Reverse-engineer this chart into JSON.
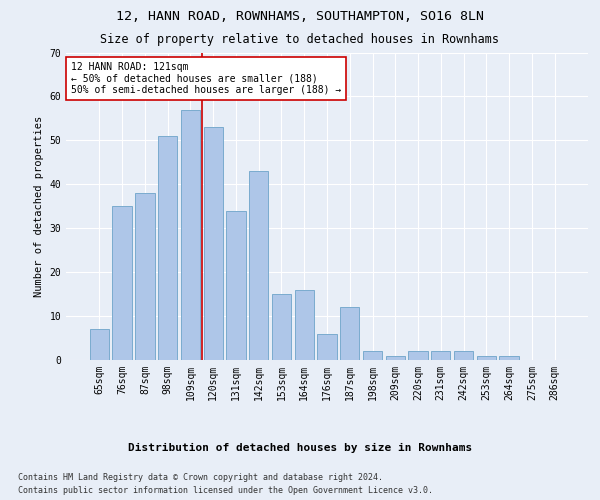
{
  "title1": "12, HANN ROAD, ROWNHAMS, SOUTHAMPTON, SO16 8LN",
  "title2": "Size of property relative to detached houses in Rownhams",
  "xlabel": "Distribution of detached houses by size in Rownhams",
  "ylabel": "Number of detached properties",
  "categories": [
    "65sqm",
    "76sqm",
    "87sqm",
    "98sqm",
    "109sqm",
    "120sqm",
    "131sqm",
    "142sqm",
    "153sqm",
    "164sqm",
    "176sqm",
    "187sqm",
    "198sqm",
    "209sqm",
    "220sqm",
    "231sqm",
    "242sqm",
    "253sqm",
    "264sqm",
    "275sqm",
    "286sqm"
  ],
  "bar_heights": [
    7,
    35,
    38,
    51,
    57,
    53,
    34,
    43,
    15,
    16,
    6,
    12,
    2,
    1,
    2,
    2,
    2,
    1,
    1,
    0,
    0
  ],
  "bar_color": "#aec6e8",
  "bar_edge_color": "#7aabce",
  "vline_x": 4.5,
  "vline_color": "#cc0000",
  "annotation_text": "12 HANN ROAD: 121sqm\n← 50% of detached houses are smaller (188)\n50% of semi-detached houses are larger (188) →",
  "annotation_box_color": "#ffffff",
  "annotation_box_edge_color": "#cc0000",
  "ylim": [
    0,
    70
  ],
  "yticks": [
    0,
    10,
    20,
    30,
    40,
    50,
    60,
    70
  ],
  "background_color": "#e8eef7",
  "footer1": "Contains HM Land Registry data © Crown copyright and database right 2024.",
  "footer2": "Contains public sector information licensed under the Open Government Licence v3.0.",
  "title1_fontsize": 9.5,
  "title2_fontsize": 8.5,
  "xlabel_fontsize": 8,
  "ylabel_fontsize": 7.5,
  "tick_fontsize": 7,
  "annotation_fontsize": 7,
  "footer_fontsize": 6
}
